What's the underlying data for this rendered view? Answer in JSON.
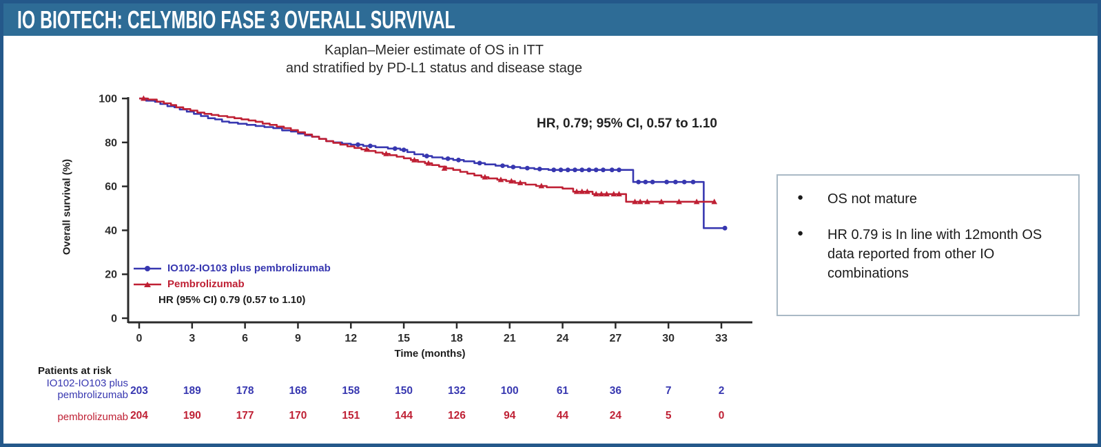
{
  "header": {
    "title": "IO BIOTECH: CELYMBIO FASE 3 OVERALL SURVIVAL"
  },
  "chart": {
    "title_line1": "Kaplan–Meier estimate of OS in ITT",
    "title_line2": "and stratified by PD-L1 status and disease stage",
    "hr_annotation": "HR, 0.79; 95% CI, 0.57 to 1.10",
    "legend": {
      "series1_label": "IO102-IO103 plus pembrolizumab",
      "series2_label": "Pembrolizumab",
      "hr_line": "HR (95% CI) 0.79 (0.57 to 1.10)"
    },
    "ylabel": "Overall survival (%)",
    "xlabel": "Time (months)"
  },
  "chart_data": {
    "type": "line",
    "subtype": "kaplan-meier-step",
    "title": "Kaplan–Meier estimate of OS in ITT and stratified by PD-L1 status and disease stage",
    "xlabel": "Time (months)",
    "ylabel": "Overall survival (%)",
    "xlim": [
      0,
      34
    ],
    "ylim": [
      0,
      100
    ],
    "x_ticks": [
      0,
      3,
      6,
      9,
      12,
      15,
      18,
      21,
      24,
      27,
      30,
      33
    ],
    "y_ticks": [
      0,
      20,
      40,
      60,
      80,
      100
    ],
    "grid": false,
    "legend_position": "inside-lower-left",
    "hr_text": "HR, 0.79; 95% CI, 0.57 to 1.10",
    "series": [
      {
        "name": "IO102-IO103 plus pembrolizumab",
        "color": "#3737b0",
        "marker": "circle",
        "start": 100,
        "end_month": 33.2,
        "steps": [
          [
            0.4,
            99
          ],
          [
            0.9,
            98.5
          ],
          [
            1.2,
            97.5
          ],
          [
            1.6,
            96.5
          ],
          [
            2.0,
            96
          ],
          [
            2.3,
            95
          ],
          [
            2.7,
            94
          ],
          [
            3.1,
            93
          ],
          [
            3.5,
            92
          ],
          [
            3.9,
            91
          ],
          [
            4.3,
            90.5
          ],
          [
            4.7,
            89.5
          ],
          [
            5.1,
            89
          ],
          [
            5.6,
            88.5
          ],
          [
            6.1,
            88
          ],
          [
            6.6,
            87.5
          ],
          [
            7.1,
            87
          ],
          [
            7.6,
            86.5
          ],
          [
            8.1,
            85.5
          ],
          [
            8.6,
            85
          ],
          [
            9.0,
            84
          ],
          [
            9.4,
            83.2
          ],
          [
            9.8,
            82.6
          ],
          [
            10.2,
            81.6
          ],
          [
            10.6,
            80.6
          ],
          [
            11.0,
            80
          ],
          [
            11.5,
            79.4
          ],
          [
            12.0,
            79
          ],
          [
            12.7,
            78.4
          ],
          [
            13.4,
            77.8
          ],
          [
            14.1,
            77.2
          ],
          [
            14.8,
            76.6
          ],
          [
            15.2,
            75.6
          ],
          [
            15.6,
            74.6
          ],
          [
            16.1,
            73.8
          ],
          [
            16.6,
            73.2
          ],
          [
            17.2,
            72.6
          ],
          [
            17.8,
            72
          ],
          [
            18.4,
            71.4
          ],
          [
            19.0,
            70.6
          ],
          [
            19.6,
            70
          ],
          [
            20.2,
            69.4
          ],
          [
            20.9,
            68.8
          ],
          [
            21.6,
            68.3
          ],
          [
            22.4,
            67.9
          ],
          [
            23.2,
            67.5
          ],
          [
            28.0,
            62
          ],
          [
            32.0,
            41
          ]
        ],
        "censors": [
          [
            12.4,
            79
          ],
          [
            13.1,
            78.4
          ],
          [
            14.5,
            77.2
          ],
          [
            15.0,
            76.6
          ],
          [
            16.3,
            73.8
          ],
          [
            17.5,
            72.6
          ],
          [
            18.1,
            72
          ],
          [
            19.3,
            70.6
          ],
          [
            20.6,
            69.4
          ],
          [
            21.2,
            68.8
          ],
          [
            22.0,
            68.3
          ],
          [
            22.7,
            67.9
          ],
          [
            23.5,
            67.5
          ],
          [
            23.9,
            67.5
          ],
          [
            24.3,
            67.5
          ],
          [
            24.7,
            67.5
          ],
          [
            25.1,
            67.5
          ],
          [
            25.5,
            67.5
          ],
          [
            25.9,
            67.5
          ],
          [
            26.3,
            67.5
          ],
          [
            26.8,
            67.5
          ],
          [
            27.2,
            67.5
          ],
          [
            28.3,
            62
          ],
          [
            28.7,
            62
          ],
          [
            29.1,
            62
          ],
          [
            29.9,
            62
          ],
          [
            30.4,
            62
          ],
          [
            30.9,
            62
          ],
          [
            31.4,
            62
          ],
          [
            33.2,
            41
          ]
        ]
      },
      {
        "name": "Pembrolizumab",
        "color": "#bf2034",
        "marker": "triangle",
        "start": 100,
        "end_month": 32.6,
        "steps": [
          [
            0.5,
            99.5
          ],
          [
            1.0,
            98.6
          ],
          [
            1.4,
            97.8
          ],
          [
            1.8,
            97
          ],
          [
            2.1,
            96
          ],
          [
            2.5,
            95.2
          ],
          [
            2.9,
            94.5
          ],
          [
            3.3,
            93.6
          ],
          [
            3.7,
            93
          ],
          [
            4.1,
            92.5
          ],
          [
            4.5,
            92
          ],
          [
            5.0,
            91.5
          ],
          [
            5.4,
            91
          ],
          [
            5.8,
            90.5
          ],
          [
            6.2,
            90
          ],
          [
            6.6,
            89.4
          ],
          [
            7.0,
            88.6
          ],
          [
            7.4,
            88
          ],
          [
            7.8,
            87.2
          ],
          [
            8.2,
            86.5
          ],
          [
            8.6,
            85.6
          ],
          [
            9.0,
            84.6
          ],
          [
            9.4,
            83.6
          ],
          [
            9.8,
            82.6
          ],
          [
            10.2,
            81.6
          ],
          [
            10.6,
            80.6
          ],
          [
            11.0,
            79.8
          ],
          [
            11.4,
            79
          ],
          [
            11.8,
            78.2
          ],
          [
            12.2,
            77.5
          ],
          [
            12.6,
            76.8
          ],
          [
            13.0,
            76.1
          ],
          [
            13.4,
            75.4
          ],
          [
            13.8,
            74.8
          ],
          [
            14.2,
            74.2
          ],
          [
            14.6,
            73.5
          ],
          [
            15.0,
            72.8
          ],
          [
            15.4,
            72
          ],
          [
            15.8,
            71.2
          ],
          [
            16.2,
            70.5
          ],
          [
            16.6,
            69.7
          ],
          [
            17.0,
            69
          ],
          [
            17.4,
            68.2
          ],
          [
            17.8,
            67.5
          ],
          [
            18.2,
            66.6
          ],
          [
            18.6,
            65.8
          ],
          [
            19.0,
            65
          ],
          [
            19.4,
            64.2
          ],
          [
            19.8,
            63.6
          ],
          [
            20.3,
            63
          ],
          [
            20.8,
            62.4
          ],
          [
            21.3,
            61.6
          ],
          [
            21.9,
            60.8
          ],
          [
            22.5,
            60.2
          ],
          [
            23.1,
            59.6
          ],
          [
            24.0,
            59
          ],
          [
            24.6,
            57.6
          ],
          [
            25.7,
            56.5
          ],
          [
            27.6,
            53
          ]
        ],
        "censors": [
          [
            0.25,
            100
          ],
          [
            12.9,
            76.8
          ],
          [
            14.0,
            74.8
          ],
          [
            15.6,
            72
          ],
          [
            16.4,
            70.5
          ],
          [
            17.3,
            68.2
          ],
          [
            19.6,
            64.2
          ],
          [
            20.5,
            63
          ],
          [
            21.1,
            62.4
          ],
          [
            21.6,
            61.6
          ],
          [
            22.8,
            60.2
          ],
          [
            24.8,
            57.6
          ],
          [
            25.1,
            57.6
          ],
          [
            25.4,
            57.6
          ],
          [
            25.9,
            56.5
          ],
          [
            26.2,
            56.5
          ],
          [
            26.5,
            56.5
          ],
          [
            26.9,
            56.5
          ],
          [
            27.2,
            56.5
          ],
          [
            28.1,
            53
          ],
          [
            28.4,
            53
          ],
          [
            28.8,
            53
          ],
          [
            29.6,
            53
          ],
          [
            30.6,
            53
          ],
          [
            31.6,
            53
          ],
          [
            32.6,
            53
          ]
        ]
      }
    ],
    "at_risk": {
      "title": "Patients at risk",
      "months": [
        0,
        3,
        6,
        9,
        12,
        15,
        18,
        21,
        24,
        27,
        30,
        33
      ],
      "rows": [
        {
          "label_line1": "IO102-IO103 plus",
          "label_line2": "pembrolizumab",
          "color": "#3737b0",
          "counts": [
            203,
            189,
            178,
            168,
            158,
            150,
            132,
            100,
            61,
            36,
            7,
            2
          ]
        },
        {
          "label_line1": "pembrolizumab",
          "label_line2": "",
          "color": "#bf2034",
          "counts": [
            204,
            190,
            177,
            170,
            151,
            144,
            126,
            94,
            44,
            24,
            5,
            0
          ]
        }
      ]
    }
  },
  "notes": {
    "bullets": [
      "OS not mature",
      "HR 0.79 is In line with 12month OS data reported from other IO combinations"
    ]
  },
  "colors": {
    "header_band": "#2e6c96",
    "outer_border": "#24588a",
    "series1_blue": "#3737b0",
    "series2_red": "#bf2034",
    "notes_border": "#a9b9c5",
    "axis": "#2a2a2a"
  }
}
